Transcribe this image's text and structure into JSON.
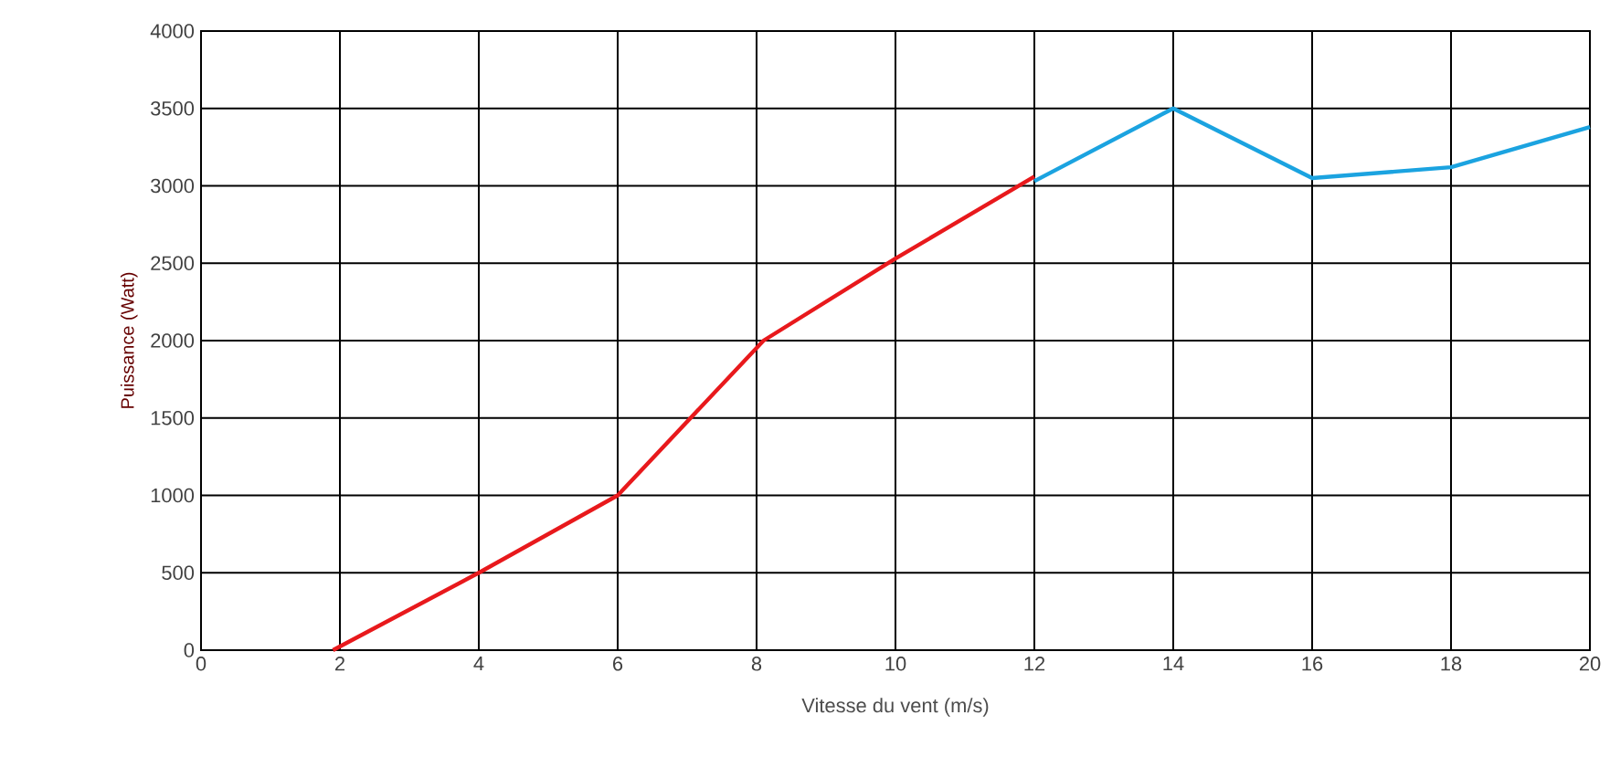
{
  "chart_data": {
    "type": "line",
    "xlabel": "Vitesse du vent (m/s)",
    "ylabel": "Puissance (Watt)",
    "xlim": [
      0,
      20
    ],
    "xticks": [
      0,
      2,
      4,
      6,
      8,
      10,
      12,
      14,
      16,
      18,
      20
    ],
    "ylim": [
      0,
      4000
    ],
    "yticks": [
      0,
      500,
      1000,
      1500,
      2000,
      2500,
      3000,
      3500,
      4000
    ],
    "grid": true,
    "marker": "none",
    "line_style": "solid",
    "series": [
      {
        "color": "#e8191c",
        "x": [
          1.9,
          4,
          6,
          8.1,
          10,
          12
        ],
        "values": [
          0,
          500,
          1000,
          2000,
          2530,
          3060
        ]
      },
      {
        "color": "#1ba3e0",
        "x": [
          12,
          14,
          16,
          18,
          20
        ],
        "values": [
          3030,
          3500,
          3050,
          3120,
          3380
        ]
      }
    ]
  }
}
